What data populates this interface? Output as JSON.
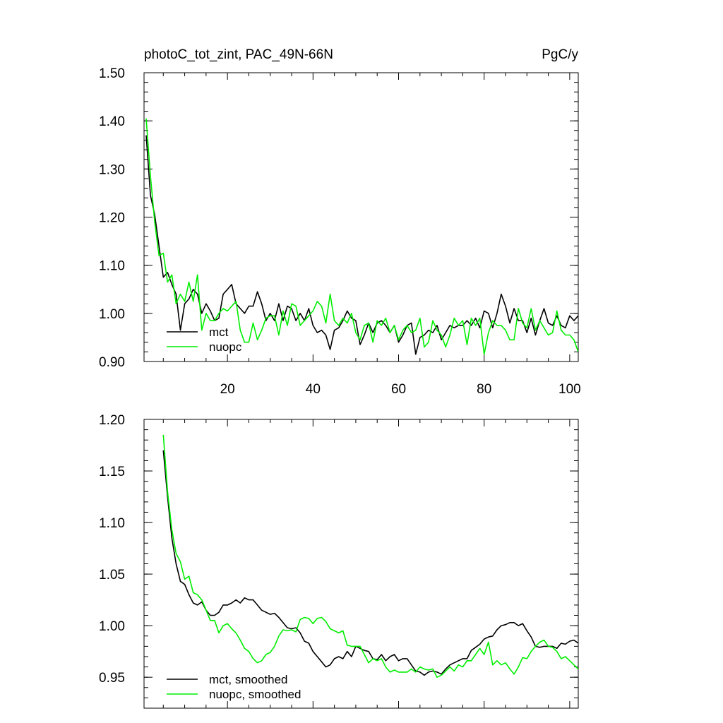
{
  "chart_data": [
    {
      "type": "line",
      "title": "photoC_tot_zint, PAC_49N-66N",
      "units": "PgC/y",
      "xlabel": "",
      "ylabel": "",
      "xlim": [
        0.5,
        102
      ],
      "ylim": [
        0.9,
        1.5
      ],
      "xticks": [
        20,
        40,
        60,
        80,
        100
      ],
      "yticks": [
        0.9,
        1.0,
        1.1,
        1.2,
        1.3,
        1.4,
        1.5
      ],
      "ytick_labels": [
        "0.90",
        "1.00",
        "1.10",
        "1.20",
        "1.30",
        "1.40",
        "1.50"
      ],
      "x_start": 1,
      "series": [
        {
          "name": "mct",
          "color": "#000000",
          "values": [
            1.37,
            1.245,
            1.205,
            1.14,
            1.075,
            1.085,
            1.06,
            1.04,
            0.965,
            1.02,
            1.03,
            1.05,
            1.04,
            1.0,
            1.02,
            1.005,
            0.985,
            0.99,
            1.04,
            1.05,
            1.06,
            1.02,
            1.01,
            1.0,
            1.015,
            1.015,
            1.045,
            1.02,
            0.985,
            1.0,
            0.985,
            1.02,
            0.985,
            1.015,
            1.01,
            0.985,
            1.0,
            0.985,
            1.01,
            0.975,
            0.96,
            0.965,
            0.955,
            0.925,
            0.965,
            0.97,
            0.985,
            1.005,
            0.99,
            0.985,
            0.935,
            0.955,
            0.98,
            0.96,
            0.98,
            0.985,
            0.975,
            0.96,
            0.975,
            0.94,
            0.955,
            0.975,
            0.98,
            0.915,
            0.95,
            0.955,
            0.965,
            0.96,
            0.975,
            0.945,
            0.96,
            0.975,
            0.97,
            0.975,
            0.975,
            0.985,
            0.975,
            0.99,
            0.97,
            1.005,
            1.0,
            0.97,
            1.0,
            1.04,
            1.015,
            0.98,
            1.01,
            0.985,
            0.985,
            0.96,
            0.99,
            0.955,
            0.985,
            1.01,
            0.98,
            0.975,
            0.995,
            0.975,
            0.97,
            0.995,
            0.985,
            0.995
          ]
        },
        {
          "name": "nuopc",
          "color": "#00ee00",
          "values": [
            1.405,
            1.285,
            1.19,
            1.12,
            1.125,
            1.065,
            1.08,
            1.02,
            1.04,
            1.025,
            1.065,
            1.025,
            1.08,
            0.965,
            1.0,
            0.985,
            0.985,
            1.0,
            1.01,
            1.005,
            1.015,
            1.025,
            0.965,
            0.94,
            0.94,
            0.98,
            0.945,
            0.965,
            0.99,
            0.995,
            0.995,
            0.955,
            1.005,
            0.975,
            1.02,
            1.015,
            0.975,
            0.985,
            0.995,
            1.005,
            1.025,
            1.015,
            0.98,
            1.04,
            0.985,
            0.975,
            0.99,
            0.98,
            1.0,
            0.96,
            0.945,
            0.975,
            0.98,
            0.94,
            0.985,
            0.975,
            0.99,
            0.96,
            0.975,
            0.945,
            0.965,
            0.975,
            0.96,
            0.965,
            0.99,
            0.93,
            0.94,
            0.985,
            0.965,
            0.955,
            0.93,
            0.955,
            0.99,
            0.975,
            0.985,
            0.935,
            0.99,
            0.975,
            0.99,
            0.915,
            0.96,
            0.985,
            0.975,
            0.975,
            0.965,
            0.945,
            0.945,
            1.01,
            0.98,
            0.97,
            1.01,
            0.965,
            0.985,
            0.97,
            0.955,
            0.96,
            1.005,
            0.965,
            0.955,
            0.955,
            0.945,
            0.92
          ]
        }
      ]
    },
    {
      "type": "line",
      "title": "",
      "xlabel": "",
      "ylabel": "",
      "xlim": [
        0.5,
        102
      ],
      "ylim": [
        0.92,
        1.2
      ],
      "xticks": [
        20,
        40,
        60,
        80,
        100
      ],
      "yticks": [
        0.95,
        1.0,
        1.05,
        1.1,
        1.15,
        1.2
      ],
      "ytick_labels": [
        "0.95",
        "1.00",
        "1.05",
        "1.10",
        "1.15",
        "1.20"
      ],
      "x_start": 5,
      "series": [
        {
          "name": "mct, smoothed",
          "color": "#000000",
          "values": [
            1.17,
            1.125,
            1.085,
            1.06,
            1.043,
            1.04,
            1.03,
            1.022,
            1.02,
            1.023,
            1.015,
            1.01,
            1.01,
            1.013,
            1.02,
            1.02,
            1.022,
            1.025,
            1.022,
            1.027,
            1.025,
            1.025,
            1.02,
            1.015,
            1.013,
            1.011,
            1.012,
            1.008,
            1.003,
            0.998,
            0.997,
            0.998,
            0.993,
            0.985,
            0.983,
            0.975,
            0.97,
            0.965,
            0.96,
            0.962,
            0.968,
            0.97,
            0.968,
            0.975,
            0.97,
            0.98,
            0.978,
            0.976,
            0.975,
            0.968,
            0.967,
            0.972,
            0.966,
            0.97,
            0.972,
            0.966,
            0.968,
            0.968,
            0.962,
            0.956,
            0.955,
            0.952,
            0.955,
            0.956,
            0.955,
            0.953,
            0.958,
            0.962,
            0.964,
            0.966,
            0.968,
            0.968,
            0.976,
            0.979,
            0.982,
            0.987,
            0.989,
            0.99,
            0.996,
            1.0,
            1.001,
            1.003,
            1.003,
            1.0,
            1.002,
            0.995,
            0.989,
            0.98,
            0.979,
            0.98,
            0.98,
            0.98,
            0.978,
            0.983,
            0.982,
            0.985,
            0.986,
            0.983,
            0.984
          ]
        },
        {
          "name": "nuopc, smoothed",
          "color": "#00ee00",
          "values": [
            1.185,
            1.13,
            1.093,
            1.07,
            1.062,
            1.045,
            1.048,
            1.032,
            1.03,
            1.025,
            1.015,
            1.005,
            1.005,
            0.993,
            1.0,
            1.002,
            0.997,
            0.993,
            0.986,
            0.978,
            0.975,
            0.968,
            0.964,
            0.966,
            0.972,
            0.974,
            0.98,
            0.99,
            0.996,
            0.995,
            0.996,
            0.994,
            1.006,
            1.008,
            1.007,
            1.002,
            1.007,
            1.008,
            1.004,
            0.997,
            0.995,
            0.993,
            0.995,
            0.981,
            0.98,
            0.98,
            0.98,
            0.972,
            0.964,
            0.968,
            0.966,
            0.968,
            0.96,
            0.955,
            0.957,
            0.955,
            0.955,
            0.955,
            0.958,
            0.955,
            0.96,
            0.958,
            0.957,
            0.958,
            0.95,
            0.952,
            0.956,
            0.96,
            0.956,
            0.962,
            0.96,
            0.966,
            0.966,
            0.972,
            0.978,
            0.972,
            0.984,
            0.962,
            0.966,
            0.962,
            0.964,
            0.958,
            0.953,
            0.96,
            0.969,
            0.968,
            0.975,
            0.98,
            0.984,
            0.986,
            0.98,
            0.979,
            0.975,
            0.968,
            0.97,
            0.966,
            0.962,
            0.958,
            0.96,
            0.958
          ]
        }
      ]
    }
  ]
}
